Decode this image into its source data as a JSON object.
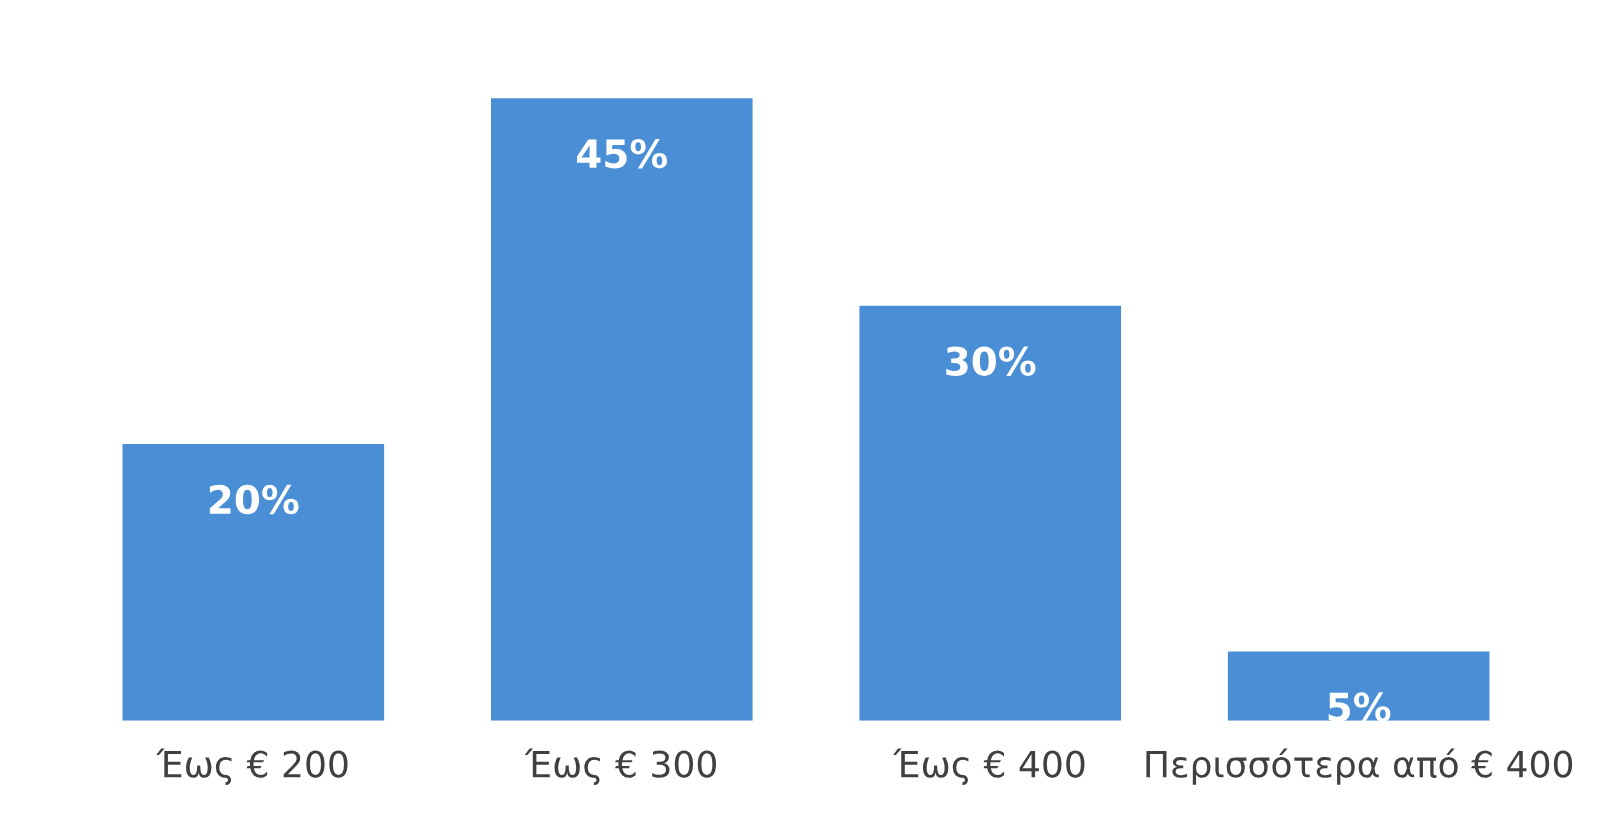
{
  "chart_data": {
    "type": "bar",
    "categories": [
      "Έως € 200",
      "Έως € 300",
      "Έως € 400",
      "Περισσότερα από € 400"
    ],
    "values": [
      20,
      45,
      30,
      5
    ],
    "color": "#4a8fd6",
    "data_labels": true,
    "value_labels": [
      "20%",
      "45%",
      "30%",
      "5%"
    ],
    "grid": false,
    "legend": false
  }
}
